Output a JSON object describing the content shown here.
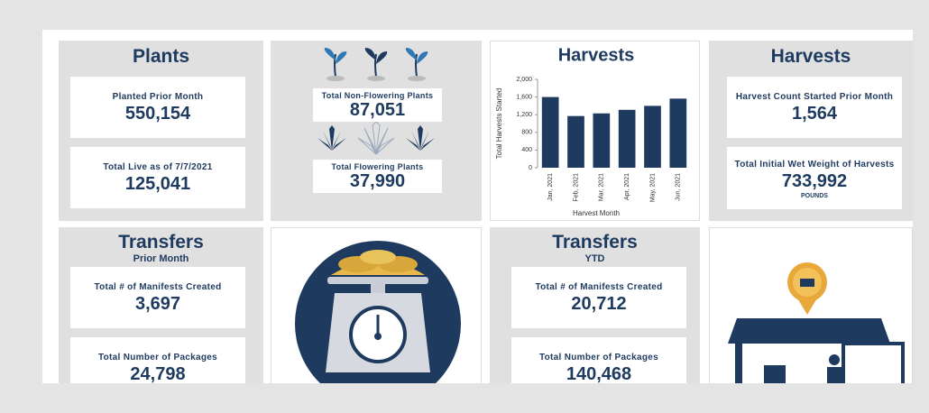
{
  "panels": {
    "plants": {
      "title": "Plants",
      "cards": [
        {
          "label": "Planted Prior Month",
          "value": "550,154"
        },
        {
          "label": "Total Live as of 7/7/2021",
          "value": "125,041"
        }
      ]
    },
    "plant_types": {
      "cards": [
        {
          "label": "Total Non-Flowering Plants",
          "value": "87,051"
        },
        {
          "label": "Total Flowering Plants",
          "value": "37,990"
        }
      ]
    },
    "harvests": {
      "title": "Harvests",
      "cards": [
        {
          "label": "Harvest Count Started Prior Month",
          "value": "1,564"
        },
        {
          "label": "Total Initial Wet Weight of Harvests",
          "value": "733,992",
          "unit": "POUNDS"
        }
      ]
    },
    "transfers_month": {
      "title": "Transfers",
      "subtitle": "Prior Month",
      "cards": [
        {
          "label": "Total # of Manifests Created",
          "value": "3,697"
        },
        {
          "label": "Total Number of Packages",
          "value": "24,798"
        }
      ]
    },
    "transfers_ytd": {
      "title": "Transfers",
      "subtitle": "YTD",
      "cards": [
        {
          "label": "Total # of Manifests Created",
          "value": "20,712"
        },
        {
          "label": "Total Number of Packages",
          "value": "140,468"
        }
      ]
    }
  },
  "chart_data": {
    "type": "bar",
    "title": "Harvests",
    "x_label": "Harvest Month",
    "y_label": "Total Harvests Started",
    "categories": [
      "Jan, 2021",
      "Feb, 2021",
      "Mar, 2021",
      "Apr, 2021",
      "May, 2021",
      "Jun, 2021"
    ],
    "values": [
      1600,
      1170,
      1230,
      1310,
      1400,
      1564
    ],
    "color": "#1e3a5f",
    "ylim": [
      0,
      2000
    ],
    "yticks": [
      0,
      400,
      800,
      {
        "value": 1200,
        "label": "1,200"
      },
      {
        "value": 1600,
        "label": "1,600"
      },
      {
        "value": 2000,
        "label": "2,000"
      }
    ]
  }
}
